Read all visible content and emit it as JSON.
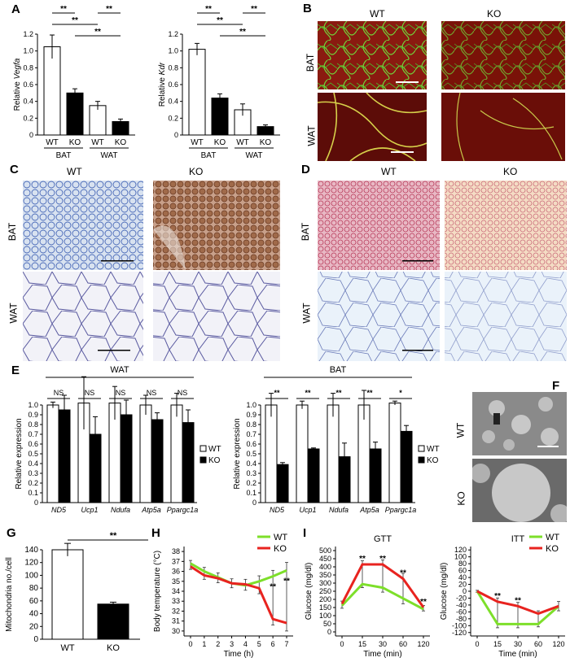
{
  "panels": {
    "A": "A",
    "B": "B",
    "C": "C",
    "D": "D",
    "E": "E",
    "F": "F",
    "G": "G",
    "H": "H",
    "I": "I"
  },
  "labels": {
    "wt": "WT",
    "ko": "KO",
    "bat": "BAT",
    "wat": "WAT",
    "sig": "**",
    "ns": "NS",
    "sig1": "*"
  },
  "panelA": {
    "vegfa": {
      "ylabel_prefix": "Relative ",
      "ylabel_gene": "Vegfa",
      "ylim": [
        0,
        1.2
      ],
      "ticks": [
        "0",
        "0.2",
        "0.4",
        "0.6",
        "0.8",
        "1.0",
        "1.2"
      ],
      "categories": [
        "WT",
        "KO",
        "WT",
        "KO"
      ],
      "values": [
        1.05,
        0.5,
        0.35,
        0.16
      ],
      "errors": [
        0.14,
        0.05,
        0.05,
        0.03
      ],
      "groups": [
        "BAT",
        "WAT"
      ]
    },
    "kdr": {
      "ylabel_prefix": "Relative ",
      "ylabel_gene": "Kdr",
      "ylim": [
        0,
        1.2
      ],
      "ticks": [
        "0",
        "0.2",
        "0.4",
        "0.6",
        "0.8",
        "1.0",
        "1.2"
      ],
      "categories": [
        "WT",
        "KO",
        "WT",
        "KO"
      ],
      "values": [
        1.02,
        0.44,
        0.3,
        0.1
      ],
      "errors": [
        0.07,
        0.05,
        0.07,
        0.02
      ],
      "groups": [
        "BAT",
        "WAT"
      ]
    }
  },
  "panelE": {
    "ylabel": "Relative expression",
    "ticks": [
      "0",
      "0.1",
      "0.2",
      "0.3",
      "0.4",
      "0.5",
      "0.6",
      "0.7",
      "0.8",
      "0.9",
      "1.0"
    ],
    "genes": [
      "ND5",
      "Ucp1",
      "Ndufa",
      "Atp5a",
      "Ppargc1a"
    ],
    "wat": {
      "title": "WAT",
      "wt": [
        1.0,
        1.02,
        1.02,
        1.0,
        1.0
      ],
      "ko": [
        0.95,
        0.7,
        0.9,
        0.85,
        0.82
      ],
      "wt_err": [
        0.03,
        0.27,
        0.17,
        0.1,
        0.12
      ],
      "ko_err": [
        0.15,
        0.18,
        0.15,
        0.07,
        0.13
      ],
      "sig": [
        "NS",
        "NS",
        "NS",
        "NS",
        "NS"
      ]
    },
    "bat": {
      "title": "BAT",
      "wt": [
        1.0,
        1.0,
        1.0,
        1.0,
        1.02
      ],
      "ko": [
        0.39,
        0.55,
        0.47,
        0.55,
        0.73
      ],
      "wt_err": [
        0.12,
        0.04,
        0.12,
        0.15,
        0.02
      ],
      "ko_err": [
        0.02,
        0.01,
        0.14,
        0.07,
        0.06
      ],
      "sig": [
        "**",
        "**",
        "**",
        "**",
        "*"
      ]
    }
  },
  "panelG": {
    "ylabel": "Mitochondria no./cell",
    "ylim": [
      0,
      140
    ],
    "ticks": [
      "0",
      "20",
      "40",
      "60",
      "80",
      "100",
      "120",
      "140"
    ],
    "categories": [
      "WT",
      "KO"
    ],
    "values": [
      140,
      55
    ],
    "errors": [
      10,
      3
    ]
  },
  "panelH": {
    "xlabel": "Time (h)",
    "ylabel": "Body temperature (°C)",
    "x": [
      0,
      1,
      2,
      3,
      4,
      5,
      6,
      7
    ],
    "xticks": [
      "0",
      "1",
      "2",
      "3",
      "4",
      "5",
      "6",
      "7"
    ],
    "yticks": [
      "30",
      "31",
      "32",
      "33",
      "34",
      "35",
      "36",
      "37",
      "38"
    ],
    "ylim": [
      29.5,
      38.5
    ],
    "wt": [
      36.8,
      36.0,
      35.4,
      34.8,
      34.6,
      35.0,
      35.5,
      36.1
    ],
    "ko": [
      36.5,
      35.6,
      35.3,
      34.8,
      34.7,
      34.3,
      31.2,
      30.8
    ],
    "err": [
      0.6,
      0.8,
      0.9,
      0.9,
      1.0,
      1.1,
      1.2,
      1.6
    ],
    "colors": {
      "wt": "#7ddf2a",
      "ko": "#e8231f"
    }
  },
  "panelI": {
    "gtt": {
      "title": "GTT",
      "xlabel": "Time (min)",
      "ylabel": "Glucose (mg/dl)",
      "xticks": [
        "0",
        "15",
        "30",
        "60",
        "120"
      ],
      "yticks": [
        "0",
        "50",
        "100",
        "150",
        "200",
        "250",
        "300",
        "350",
        "400",
        "450",
        "500"
      ],
      "ylim": [
        0,
        500
      ],
      "wt": [
        170,
        290,
        270,
        210,
        150
      ],
      "ko": [
        180,
        400,
        400,
        320,
        160
      ],
      "err": [
        30,
        40,
        50,
        60,
        20
      ]
    },
    "itt": {
      "title": "ITT",
      "xlabel": "Time (min)",
      "ylabel": "Glucose (mg/dl)",
      "xticks": [
        "0",
        "15",
        "30",
        "60",
        "120"
      ],
      "yticks": [
        "-120",
        "-100",
        "-80",
        "-60",
        "-40",
        "-20",
        "0",
        "20",
        "40",
        "60",
        "80",
        "100",
        "120"
      ],
      "ylim": [
        -120,
        120
      ],
      "wt": [
        0,
        -88,
        -88,
        -88,
        -40
      ],
      "ko": [
        0,
        -28,
        -40,
        -60,
        -40
      ],
      "err": [
        5,
        20,
        20,
        15,
        25
      ]
    }
  }
}
